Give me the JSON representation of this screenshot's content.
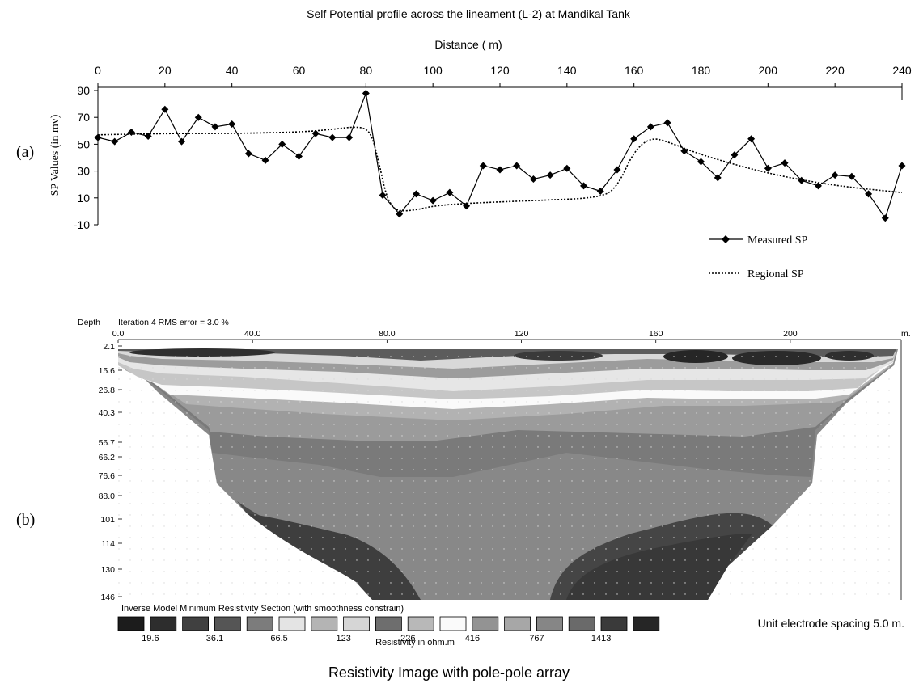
{
  "panel_a": {
    "panel_label": "(a)",
    "chart_data": {
      "type": "line",
      "title": "Self Potential profile across the lineament (L-2) at Mandikal Tank",
      "xlabel": "Distance ( m)",
      "ylabel": "SP Values (in mv)",
      "xlim": [
        0,
        240
      ],
      "ylim": [
        -10,
        90
      ],
      "x_ticks": [
        "0",
        "20",
        "40",
        "60",
        "80",
        "100",
        "120",
        "140",
        "160",
        "180",
        "200",
        "220",
        "240"
      ],
      "y_ticks": [
        "90",
        "70",
        "50",
        "30",
        "10",
        "-10"
      ],
      "series": [
        {
          "name": "Measured SP",
          "style": "solid-diamond",
          "color": "#000000",
          "x": [
            0,
            5,
            10,
            15,
            20,
            25,
            30,
            35,
            40,
            45,
            50,
            55,
            60,
            65,
            70,
            75,
            80,
            85,
            90,
            95,
            100,
            105,
            110,
            115,
            120,
            125,
            130,
            135,
            140,
            145,
            150,
            155,
            160,
            165,
            170,
            175,
            180,
            185,
            190,
            195,
            200,
            205,
            210,
            215,
            220,
            225,
            230,
            235,
            240
          ],
          "y": [
            55,
            52,
            59,
            56,
            76,
            52,
            70,
            63,
            65,
            43,
            38,
            50,
            41,
            58,
            55,
            55,
            88,
            12,
            -2,
            13,
            8,
            14,
            4,
            34,
            31,
            34,
            24,
            27,
            32,
            19,
            15,
            31,
            54,
            63,
            66,
            45,
            37,
            25,
            42,
            54,
            32,
            36,
            23,
            19,
            27,
            26,
            13,
            -5,
            34
          ]
        },
        {
          "name": "Regional SP",
          "style": "dotted",
          "color": "#000000",
          "x": [
            0,
            20,
            40,
            60,
            70,
            76,
            80,
            82,
            84,
            86,
            88,
            90,
            95,
            100,
            110,
            130,
            150,
            155,
            160,
            165,
            170,
            180,
            200,
            220,
            240
          ],
          "y": [
            57,
            58,
            58,
            59,
            61,
            63,
            62,
            55,
            35,
            12,
            3,
            0,
            1,
            4,
            6,
            8,
            10,
            18,
            45,
            55,
            52,
            42,
            28,
            19,
            14
          ]
        }
      ],
      "legend": "bottom-right"
    }
  },
  "panel_b": {
    "panel_label": "(b)",
    "header_depth": "Depth",
    "header_iteration": "Iteration 4 RMS error = 3.0 %",
    "x_ticks": [
      "0.0",
      "40.0",
      "80.0",
      "120",
      "160",
      "200"
    ],
    "x_unit": "m.",
    "depth_ticks": [
      "2.1",
      "15.6",
      "26.8",
      "40.3",
      "56.7",
      "66.2",
      "76.6",
      "88.0",
      "101",
      "114",
      "130",
      "146"
    ],
    "section_caption": "Inverse Model Minimum Resistivity Section (with smoothness constrain)",
    "legend_values": [
      "19.6",
      "36.1",
      "66.5",
      "123",
      "226",
      "416",
      "767",
      "1413"
    ],
    "legend_title": "Resistivity in ohm.m",
    "legend_colors": [
      "#1c1c1c",
      "#2d2d2d",
      "#404040",
      "#555555",
      "#7c7c7c",
      "#e4e4e4",
      "#b4b4b4",
      "#d6d6d6",
      "#6e6e6e",
      "#b8b8b8",
      "#fafafa",
      "#939393",
      "#a7a7a7",
      "#868686",
      "#6a6a6a",
      "#3a3a3a",
      "#262626"
    ],
    "spacing_note": "Unit electrode spacing 5.0 m.",
    "caption": "Resistivity Image with pole-pole array"
  },
  "legend_items": {
    "measured": "Measured SP",
    "regional": "Regional SP"
  }
}
